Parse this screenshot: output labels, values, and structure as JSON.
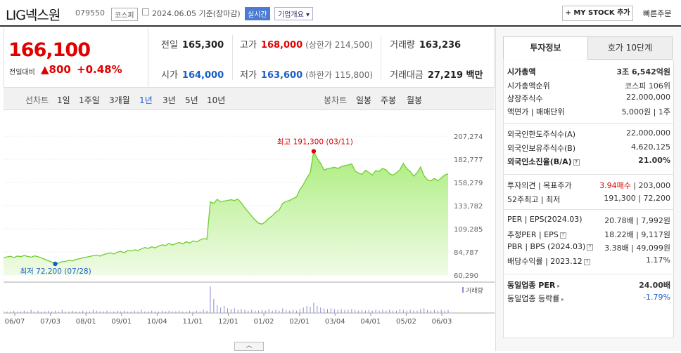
{
  "header": {
    "name": "LIG넥스원",
    "code": "079550",
    "market": "코스피",
    "date": "2024.06.05 기준(장마감)",
    "realtime": "실시간",
    "corp_overview": "기업개요 ▾",
    "mystock": "+ MY STOCK 추가",
    "quick_order": "빠른주문"
  },
  "price": {
    "current": "166,100",
    "change_label": "전일대비",
    "change": "▲800",
    "change_pct": "+0.48%"
  },
  "stats": {
    "prev_label": "전일",
    "prev": "165,300",
    "high_label": "고가",
    "high": "168,000",
    "high_limit": "(상한가 214,500)",
    "vol_label": "거래량",
    "vol": "163,236",
    "open_label": "시가",
    "open": "164,000",
    "low_label": "저가",
    "low": "163,600",
    "low_limit": "(하한가 115,800)",
    "amount_label": "거래대금",
    "amount": "27,219 백만"
  },
  "period": {
    "line_label": "선차트",
    "line_items": [
      "1일",
      "1주일",
      "3개월",
      "1년",
      "3년",
      "5년",
      "10년"
    ],
    "active": "1년",
    "candle_label": "봉차트",
    "candle_items": [
      "일봉",
      "주봉",
      "월봉"
    ]
  },
  "chart_data": {
    "type": "area",
    "x_ticks": [
      "06/07",
      "07/03",
      "08/01",
      "09/01",
      "10/04",
      "11/01",
      "12/01",
      "01/02",
      "02/01",
      "03/04",
      "04/01",
      "05/02",
      "06/03"
    ],
    "y_ticks": [
      "207,274",
      "182,777",
      "158,279",
      "133,782",
      "109,285",
      "84,787",
      "60,290"
    ],
    "ylim": [
      60290,
      207274
    ],
    "values": [
      79000,
      79500,
      80200,
      78800,
      80500,
      79800,
      81000,
      80000,
      79200,
      80600,
      79800,
      78500,
      77000,
      75500,
      74000,
      72200,
      73000,
      74500,
      74800,
      76000,
      75300,
      76800,
      77500,
      78600,
      79200,
      80000,
      80800,
      81500,
      80400,
      82000,
      82900,
      83800,
      82600,
      84500,
      85400,
      84000,
      86200,
      85800,
      87000,
      86400,
      88000,
      89500,
      88600,
      90200,
      89100,
      91000,
      92300,
      91600,
      93800,
      92200,
      93500,
      94800,
      93200,
      95600,
      94100,
      96500,
      95400,
      97500,
      99000,
      98200,
      137800,
      136200,
      140500,
      137800,
      138600,
      139300,
      140000,
      139200,
      140800,
      136600,
      131500,
      127200,
      122800,
      118600,
      115200,
      114200,
      116600,
      120500,
      123000,
      127000,
      129200,
      136000,
      138400,
      139200,
      141300,
      143000,
      150800,
      156000,
      163000,
      168500,
      191300,
      184000,
      178500,
      171500,
      172800,
      173600,
      174400,
      173200,
      175000,
      176200,
      176800,
      178000,
      170500,
      168200,
      166800,
      171200,
      169000,
      166000,
      170800,
      170000,
      173200,
      171600,
      167500,
      166000,
      168500,
      171800,
      178500,
      172800,
      170000,
      165000,
      168600,
      174600,
      165500,
      161000,
      160000,
      162600,
      160000,
      163000,
      166100,
      167500
    ],
    "max_label": "최고 191,300 (03/11)",
    "min_label": "최저 72,200 (07/28)",
    "volume_label": "거래량",
    "volume": [
      3,
      2,
      2,
      3,
      2,
      2,
      3,
      2,
      4,
      2,
      3,
      2,
      2,
      3,
      2,
      3,
      2,
      4,
      2,
      2,
      3,
      2,
      2,
      3,
      2,
      2,
      4,
      3,
      2,
      2,
      3,
      2,
      2,
      3,
      2,
      3,
      2,
      2,
      3,
      2,
      4,
      2,
      2,
      3,
      2,
      2,
      3,
      2,
      3,
      2,
      2,
      3,
      2,
      2,
      3,
      2,
      3,
      2,
      4,
      3,
      34,
      18,
      10,
      7,
      9,
      6,
      5,
      6,
      4,
      5,
      4,
      3,
      4,
      3,
      3,
      4,
      3,
      5,
      3,
      4,
      3,
      6,
      4,
      3,
      4,
      3,
      5,
      7,
      9,
      8,
      13,
      9,
      7,
      6,
      5,
      6,
      5,
      4,
      5,
      4,
      4,
      5,
      4,
      3,
      4,
      3,
      4,
      3,
      4,
      3,
      4,
      3,
      4,
      3,
      3,
      5,
      4,
      3,
      4,
      3,
      3,
      5,
      6,
      4,
      3,
      4,
      3,
      4,
      3,
      4
    ]
  },
  "sidebar": {
    "tab_active": "투자정보",
    "tab_other": "호가 10단계",
    "rows": [
      {
        "l": "시가총액",
        "r": "3조 6,542억원",
        "b": true
      },
      {
        "l": "시가총액순위",
        "r": "코스피 106위"
      },
      {
        "l": "상장주식수",
        "r": "22,000,000"
      },
      {
        "l": "액면가 | 매매단위",
        "r": "5,000원 | 1주"
      },
      {
        "l": "외국인한도주식수(A)",
        "r": "22,000,000"
      },
      {
        "l": "외국인보유주식수(B)",
        "r": "4,620,125"
      },
      {
        "l": "외국인소진율(B/A)",
        "r": "21.00%",
        "b": true
      },
      {
        "l": "투자의견 | 목표주가",
        "r_red": "3.94매수",
        "r": " | 203,000"
      },
      {
        "l": "52주최고 | 최저",
        "r": "191,300 | 72,200"
      },
      {
        "l": "PER | EPS(2024.03)",
        "r": "20.78배 | 7,992원"
      },
      {
        "l": "추정PER | EPS",
        "r": "18.22배 | 9,117원"
      },
      {
        "l": "PBR | BPS (2024.03)",
        "r": "3.38배 | 49,099원"
      },
      {
        "l": "배당수익률 | 2023.12",
        "r": "1.17%"
      },
      {
        "l": "동일업종 PER",
        "r": "24.00배",
        "b": true
      },
      {
        "l": "동일업종 등락률",
        "r": "-1.79%",
        "blue": true
      }
    ]
  },
  "bottom_toggle": "︿"
}
